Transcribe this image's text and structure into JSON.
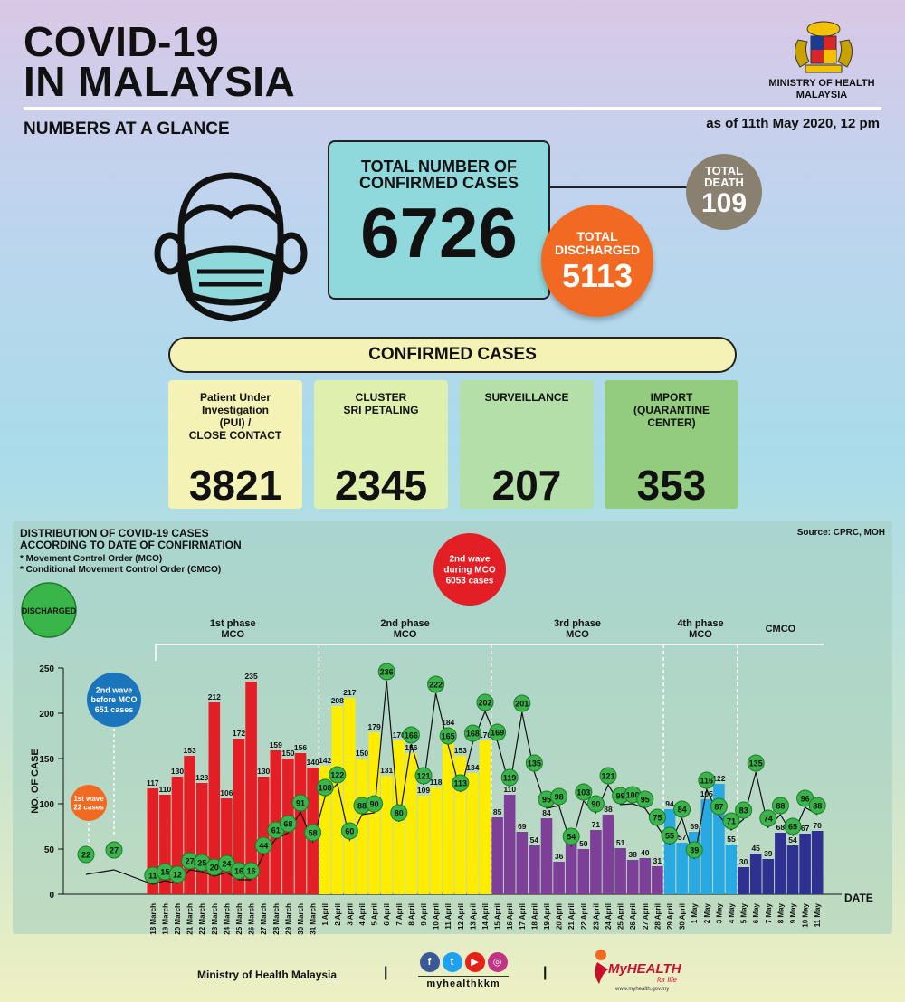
{
  "header": {
    "title_line1": "COVID-19",
    "title_line2": "IN MALAYSIA",
    "ministry_line1": "MINISTRY OF HEALTH",
    "ministry_line2": "MALAYSIA",
    "subtitle": "NUMBERS AT A GLANCE",
    "as_of": "as of 11th May 2020, 12 pm"
  },
  "summary": {
    "confirmed_label_1": "TOTAL NUMBER OF",
    "confirmed_label_2": "CONFIRMED CASES",
    "confirmed_value": "6726",
    "death_label_1": "TOTAL",
    "death_label_2": "DEATH",
    "death_value": "109",
    "discharged_label_1": "TOTAL",
    "discharged_label_2": "DISCHARGED",
    "discharged_value": "5113"
  },
  "confirmed_cases": {
    "heading": "CONFIRMED CASES",
    "cards": [
      {
        "label_lines": [
          "Patient Under",
          "Investigation",
          "(PUI) /",
          "CLOSE CONTACT"
        ],
        "value": "3821",
        "color": "#f4f3b5"
      },
      {
        "label_lines": [
          "CLUSTER",
          "SRI PETALING"
        ],
        "value": "2345",
        "color": "#dfefae"
      },
      {
        "label_lines": [
          "SURVEILLANCE"
        ],
        "value": "207",
        "color": "#b5dfa8"
      },
      {
        "label_lines": [
          "IMPORT",
          "(QUARANTINE",
          "CENTER)"
        ],
        "value": "353",
        "color": "#93cc7e"
      }
    ]
  },
  "distribution": {
    "title_1": "DISTRIBUTION OF COVID-19 CASES",
    "title_2": "ACCORDING TO DATE OF CONFIRMATION",
    "note_1": "* Movement Control Order (MCO)",
    "note_2": "* Conditional Movement Control Order (CMCO)",
    "source": "Source: CPRC, MOH"
  },
  "chart_data": {
    "type": "bar",
    "title": "DISTRIBUTION OF COVID-19 CASES ACCORDING TO DATE OF CONFIRMATION",
    "xlabel": "DATE",
    "ylabel": "NO. OF CASE",
    "ylim": [
      0,
      250
    ],
    "yticks": [
      0,
      50,
      100,
      150,
      200,
      250
    ],
    "legend": "DISCHARGED",
    "wave_labels": [
      {
        "text_lines": [
          "1st wave",
          "22 cases"
        ],
        "color": "#f26a22"
      },
      {
        "text_lines": [
          "2nd wave",
          "before MCO",
          "651 cases"
        ],
        "color": "#1b75bc"
      },
      {
        "text_lines": [
          "2nd wave",
          "during MCO",
          "6053 cases"
        ],
        "color": "#e31e24"
      }
    ],
    "pre_mco_discharged": [
      22,
      27
    ],
    "phases": [
      {
        "name_lines": [
          "1st phase",
          "MCO"
        ],
        "color": "#e31e24",
        "start": 0,
        "end": 14
      },
      {
        "name_lines": [
          "2nd phase",
          "MCO"
        ],
        "color": "#ffed00",
        "start": 14,
        "end": 28
      },
      {
        "name_lines": [
          "3rd phase",
          "MCO"
        ],
        "color": "#7e3f98",
        "start": 28,
        "end": 42
      },
      {
        "name_lines": [
          "4th phase",
          "MCO"
        ],
        "color": "#29a9e1",
        "start": 42,
        "end": 48
      },
      {
        "name_lines": [
          "CMCO"
        ],
        "color": "#2e3192",
        "start": 48,
        "end": 55
      }
    ],
    "categories": [
      "18 March",
      "19 March",
      "20 March",
      "21 March",
      "22 March",
      "23 March",
      "24 March",
      "25 March",
      "26 March",
      "27 March",
      "28 March",
      "29 March",
      "30 March",
      "31 March",
      "1 April",
      "2 April",
      "3 April",
      "4 April",
      "5 April",
      "6 April",
      "7 April",
      "8 April",
      "9 April",
      "10 April",
      "11 April",
      "12 April",
      "13 April",
      "14 April",
      "15 April",
      "16 April",
      "17 April",
      "18 April",
      "19 April",
      "20 April",
      "21 April",
      "22 April",
      "23 April",
      "24 April",
      "25 April",
      "26 April",
      "27 April",
      "28 April",
      "29 April",
      "30 April",
      "1 May",
      "2 May",
      "3 May",
      "4 May",
      "5 May",
      "6 May",
      "7 May",
      "8 May",
      "9 May",
      "10 May",
      "11 May"
    ],
    "series": [
      {
        "name": "confirmed",
        "values": [
          117,
          110,
          130,
          153,
          123,
          212,
          106,
          172,
          235,
          130,
          159,
          150,
          156,
          140,
          142,
          208,
          217,
          150,
          179,
          131,
          170,
          156,
          109,
          118,
          184,
          153,
          134,
          170,
          85,
          110,
          69,
          54,
          84,
          36,
          57,
          50,
          71,
          88,
          51,
          38,
          40,
          31,
          94,
          57,
          69,
          105,
          122,
          55,
          30,
          45,
          39,
          68,
          54,
          67,
          70
        ]
      },
      {
        "name": "DISCHARGED",
        "values": [
          11,
          15,
          12,
          27,
          25,
          20,
          24,
          16,
          16,
          44,
          61,
          68,
          91,
          58,
          108,
          122,
          60,
          88,
          90,
          236,
          80,
          166,
          121,
          222,
          165,
          113,
          168,
          202,
          169,
          119,
          201,
          135,
          95,
          98,
          54,
          103,
          90,
          121,
          99,
          100,
          95,
          75,
          55,
          84,
          39,
          116,
          87,
          71,
          83,
          135,
          74,
          88,
          65,
          96,
          88
        ]
      }
    ]
  },
  "footer": {
    "ministry": "Ministry of Health Malaysia",
    "separator": "|",
    "handle": "myhealthkkm",
    "brand": "MyHEALTH",
    "brand_sub": "for life",
    "url": "www.myhealth.gov.my"
  }
}
